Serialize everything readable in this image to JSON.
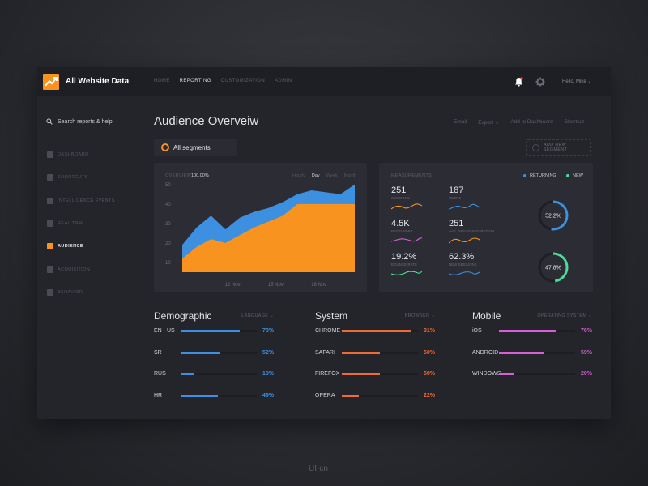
{
  "header": {
    "app_title": "All Website Data",
    "nav": [
      {
        "label": "HOME",
        "active": false
      },
      {
        "label": "REPORTING",
        "active": true
      },
      {
        "label": "CUSTOMIZATION",
        "active": false
      },
      {
        "label": "ADMIN",
        "active": false
      }
    ],
    "user": "Hello, Mike"
  },
  "sidebar": {
    "search_label": "Search reports & help",
    "items": [
      {
        "label": "DASHBOARD",
        "icon": "dashboard-icon",
        "active": false
      },
      {
        "label": "SHORTCUTS",
        "icon": "shortcut-arrow-icon",
        "active": false
      },
      {
        "label": "INTELLIGENCE EVENTS",
        "icon": "lightbulb-icon",
        "active": false
      },
      {
        "label": "REAL TIME",
        "icon": "clock-icon",
        "active": false
      },
      {
        "label": "AUDIENCE",
        "icon": "people-icon",
        "active": true
      },
      {
        "label": "ACQUISITION",
        "icon": "acquisition-icon",
        "active": false
      },
      {
        "label": "BEHAVIOR",
        "icon": "behavior-grid-icon",
        "active": false
      }
    ]
  },
  "main": {
    "title": "Audience Overveiw",
    "actions": [
      "Email",
      "Export",
      "Add to Dashboard",
      "Shortcut"
    ],
    "segment": "All segments",
    "new_segment": "ADD NEW SEGMENT"
  },
  "overview": {
    "label": "OVERVIEW",
    "value": "100.00%",
    "tabs": [
      {
        "label": "Hourly",
        "active": false
      },
      {
        "label": "Day",
        "active": true
      },
      {
        "label": "Week",
        "active": false
      },
      {
        "label": "Month",
        "active": false
      }
    ]
  },
  "chart_data": {
    "type": "area",
    "title": "",
    "xlabel": "",
    "ylabel": "",
    "ylim": [
      5,
      52
    ],
    "yticks": [
      10,
      20,
      30,
      40,
      50
    ],
    "x": [
      0,
      1,
      2,
      3,
      4,
      5,
      6,
      7,
      8,
      9,
      10,
      11,
      12
    ],
    "xtick_labels": [
      {
        "x": 3.5,
        "label": "12 Nov"
      },
      {
        "x": 6.5,
        "label": "15 Nov"
      },
      {
        "x": 9.5,
        "label": "18 Nov"
      }
    ],
    "series": [
      {
        "color": "#3d8fe0",
        "values": [
          19,
          28,
          34,
          27,
          33,
          36,
          38,
          41,
          45,
          47,
          46,
          45,
          50
        ]
      },
      {
        "color": "#f7931e",
        "values": [
          12,
          18,
          22,
          20,
          24,
          28,
          31,
          34,
          40,
          40,
          40,
          40,
          40
        ]
      }
    ]
  },
  "measurements": {
    "label": "MEASUREMENTS",
    "legend": [
      {
        "label": "RETURNING",
        "color": "#3d8fe0"
      },
      {
        "label": "NEW",
        "color": "#4ddb9a"
      }
    ],
    "metrics": [
      {
        "value": "251",
        "label": "SESSIONS",
        "color": "#f7931e"
      },
      {
        "value": "187",
        "label": "USERS",
        "color": "#3d8fe0"
      },
      {
        "value": "4.5K",
        "label": "PAGEVIEWS",
        "color": "#d85dd6"
      },
      {
        "value": "251",
        "label": "AVG. SESSION DURATION",
        "color": "#f7931e"
      },
      {
        "value": "19.2%",
        "label": "BOUNCE RATE",
        "color": "#4ddb9a"
      },
      {
        "value": "62.3%",
        "label": "NEW SESSIONS",
        "color": "#3d8fe0"
      }
    ],
    "donuts": [
      {
        "value": "52.2%",
        "fraction": 0.522,
        "color": "#3d8fe0"
      },
      {
        "value": "47.8%",
        "fraction": 0.478,
        "color": "#4ddb9a"
      }
    ]
  },
  "groups": [
    {
      "title": "Demographic",
      "filter": "LANGUAGE",
      "color": "#3d8fe0",
      "rows": [
        {
          "name": "EN - US",
          "pct": "78%",
          "value": 0.78
        },
        {
          "name": "SR",
          "pct": "52%",
          "value": 0.52
        },
        {
          "name": "RUS",
          "pct": "18%",
          "value": 0.18
        },
        {
          "name": "HR",
          "pct": "49%",
          "value": 0.49
        }
      ]
    },
    {
      "title": "System",
      "filter": "BROWSER",
      "color": "#f06a35",
      "rows": [
        {
          "name": "CHROME",
          "pct": "91%",
          "value": 0.91
        },
        {
          "name": "SAFARI",
          "pct": "50%",
          "value": 0.5
        },
        {
          "name": "FIREFOX",
          "pct": "50%",
          "value": 0.5
        },
        {
          "name": "OPERA",
          "pct": "22%",
          "value": 0.22
        }
      ]
    },
    {
      "title": "Mobile",
      "filter": "OPERATING SYSTEM",
      "color": "#d85dd6",
      "rows": [
        {
          "name": "iOS",
          "pct": "76%",
          "value": 0.76
        },
        {
          "name": "ANDROID",
          "pct": "59%",
          "value": 0.59
        },
        {
          "name": "WINDOWS",
          "pct": "20%",
          "value": 0.2
        }
      ]
    }
  ],
  "watermark": "UI·cn"
}
